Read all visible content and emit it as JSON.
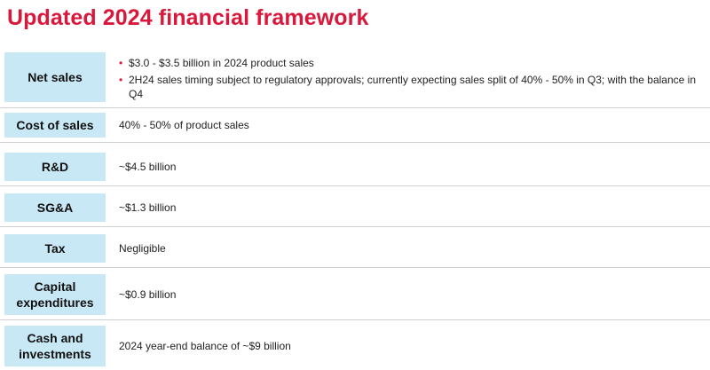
{
  "title": "Updated 2024 financial framework",
  "rows": [
    {
      "label": "Net sales",
      "bullets": [
        "$3.0 - $3.5 billion in 2024 product sales",
        "2H24 sales timing subject to regulatory approvals; currently expecting sales split of 40% - 50% in Q3; with the balance in Q4"
      ]
    },
    {
      "label": "Cost of sales",
      "value": "40% - 50% of product sales"
    },
    {
      "label": "R&D",
      "value": "~$4.5 billion"
    },
    {
      "label": "SG&A",
      "value": "~$1.3 billion"
    },
    {
      "label": "Tax",
      "value": "Negligible"
    },
    {
      "label": "Capital expenditures",
      "value": "~$0.9 billion"
    },
    {
      "label": "Cash and investments",
      "value": "2024 year-end balance of ~$9 billion"
    }
  ],
  "colors": {
    "title": "#d9183b",
    "label_bg": "#c9e8f5",
    "bullet": "#d9183b",
    "divider": "#cfcfcf"
  }
}
